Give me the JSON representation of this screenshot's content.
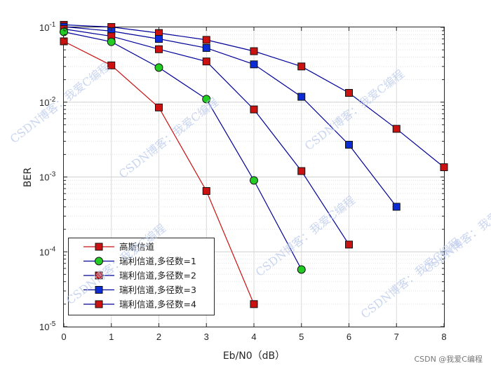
{
  "chart_data": {
    "type": "line",
    "xlabel": "Eb/N0（dB）",
    "ylabel": "BER",
    "xlim": [
      0,
      8
    ],
    "ylim": [
      1e-05,
      0.1
    ],
    "yscale": "log",
    "grid": "major and minor on",
    "legend_position": "bottom-left",
    "x_ticks": [
      "0",
      "1",
      "2",
      "3",
      "4",
      "5",
      "6",
      "7",
      "8"
    ],
    "y_ticks": [
      {
        "value": 1e-05,
        "base": "10",
        "exp": "-5"
      },
      {
        "value": 0.0001,
        "base": "10",
        "exp": "-4"
      },
      {
        "value": 0.001,
        "base": "10",
        "exp": "-3"
      },
      {
        "value": 0.01,
        "base": "10",
        "exp": "-2"
      },
      {
        "value": 0.1,
        "base": "10",
        "exp": "-1"
      }
    ],
    "series": [
      {
        "name": "瑞利信道,多径数=4",
        "line_color": "#000099",
        "marker_color": "#cc1111",
        "marker": "square",
        "x": [
          0,
          1,
          2,
          3,
          4,
          5,
          6,
          7,
          8
        ],
        "y": [
          0.108,
          0.101,
          0.084,
          0.068,
          0.048,
          0.03,
          0.0133,
          0.0044,
          0.00135
        ]
      },
      {
        "name": "瑞利信道,多径数=3",
        "line_color": "#000099",
        "marker_color": "#0a2bd6",
        "marker": "square",
        "x": [
          0,
          1,
          2,
          3,
          4,
          5,
          6,
          7
        ],
        "y": [
          0.102,
          0.089,
          0.07,
          0.053,
          0.032,
          0.0118,
          0.0027,
          0.0004
        ]
      },
      {
        "name": "瑞利信道,多径数=2",
        "line_color": "#000099",
        "marker_color": "#cc1111",
        "marker": "square",
        "x": [
          0,
          1,
          2,
          3,
          4,
          5,
          6
        ],
        "y": [
          0.095,
          0.076,
          0.051,
          0.035,
          0.008,
          0.0012,
          0.000125
        ]
      },
      {
        "name": "瑞利信道,多径数=1",
        "line_color": "#000099",
        "marker_color": "#22cc22",
        "marker": "circle",
        "x": [
          0,
          1,
          2,
          3,
          4,
          5
        ],
        "y": [
          0.087,
          0.064,
          0.029,
          0.011,
          0.0009,
          5.8e-05
        ]
      },
      {
        "name": "高斯信道",
        "line_color": "#cc1111",
        "marker_color": "#cc1111",
        "marker": "square",
        "x": [
          0,
          1,
          2,
          3,
          4
        ],
        "y": [
          0.065,
          0.031,
          0.0085,
          0.00065,
          2e-05
        ]
      }
    ],
    "legend_order": [
      "高斯信道",
      "瑞利信道,多径数=1",
      "瑞利信道,多径数=2",
      "瑞利信道,多径数=3",
      "瑞利信道,多径数=4"
    ]
  },
  "watermark": {
    "text": "CSDN博客：我爱C编程",
    "credit": "CSDN @我爱C编程"
  }
}
